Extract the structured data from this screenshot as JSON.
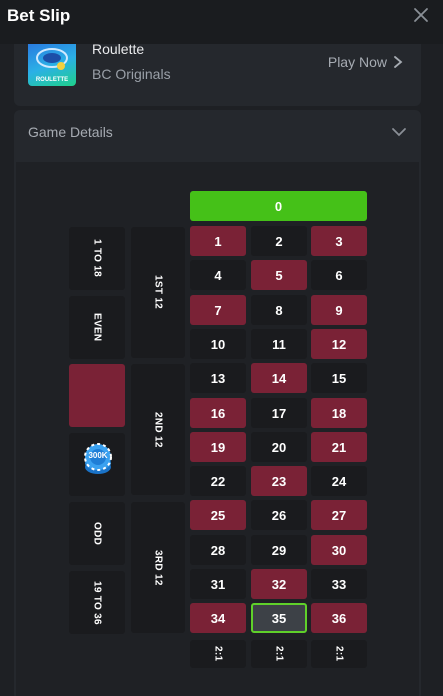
{
  "header": {
    "title": "Bet Slip"
  },
  "game": {
    "name": "Roulette",
    "provider": "BC Originals",
    "thumb_label": "ROULETTE",
    "play_label": "Play Now"
  },
  "details": {
    "title": "Game Details"
  },
  "board": {
    "zero": "0",
    "numbers": [
      {
        "n": "1",
        "c": "red"
      },
      {
        "n": "2",
        "c": "black"
      },
      {
        "n": "3",
        "c": "red"
      },
      {
        "n": "4",
        "c": "black"
      },
      {
        "n": "5",
        "c": "red"
      },
      {
        "n": "6",
        "c": "black"
      },
      {
        "n": "7",
        "c": "red"
      },
      {
        "n": "8",
        "c": "black"
      },
      {
        "n": "9",
        "c": "red"
      },
      {
        "n": "10",
        "c": "black"
      },
      {
        "n": "11",
        "c": "black"
      },
      {
        "n": "12",
        "c": "red"
      },
      {
        "n": "13",
        "c": "black"
      },
      {
        "n": "14",
        "c": "red"
      },
      {
        "n": "15",
        "c": "black"
      },
      {
        "n": "16",
        "c": "red"
      },
      {
        "n": "17",
        "c": "black"
      },
      {
        "n": "18",
        "c": "red"
      },
      {
        "n": "19",
        "c": "red"
      },
      {
        "n": "20",
        "c": "black"
      },
      {
        "n": "21",
        "c": "red"
      },
      {
        "n": "22",
        "c": "black"
      },
      {
        "n": "23",
        "c": "red"
      },
      {
        "n": "24",
        "c": "black"
      },
      {
        "n": "25",
        "c": "red"
      },
      {
        "n": "26",
        "c": "black"
      },
      {
        "n": "27",
        "c": "red"
      },
      {
        "n": "28",
        "c": "black"
      },
      {
        "n": "29",
        "c": "black"
      },
      {
        "n": "30",
        "c": "red"
      },
      {
        "n": "31",
        "c": "black"
      },
      {
        "n": "32",
        "c": "red"
      },
      {
        "n": "33",
        "c": "black"
      },
      {
        "n": "34",
        "c": "red"
      },
      {
        "n": "35",
        "c": "selected"
      },
      {
        "n": "36",
        "c": "red"
      }
    ],
    "dozens": [
      "1ST 12",
      "2ND 12",
      "3RD 12"
    ],
    "outside": [
      "1 TO 18",
      "EVEN",
      "",
      "",
      "ODD",
      "19 TO 36"
    ],
    "columns": [
      "2:1",
      "2:1",
      "2:1"
    ],
    "chip_label": "300K"
  },
  "colors": {
    "red": "#7a2236",
    "black": "#1a1b1e",
    "green": "#45c118",
    "selected_border": "#5fd12a"
  },
  "icons": [
    "close-icon",
    "chevron-right-icon",
    "chevron-down-icon",
    "chip-icon"
  ]
}
